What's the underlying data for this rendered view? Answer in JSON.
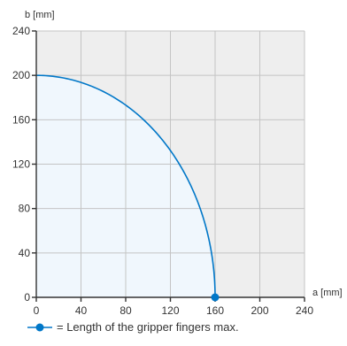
{
  "chart_data": {
    "type": "line",
    "xlabel": "a [mm]",
    "ylabel": "b [mm]",
    "xlim": [
      0,
      240
    ],
    "ylim": [
      0,
      240
    ],
    "x_ticks": [
      0,
      40,
      80,
      120,
      160,
      200,
      240
    ],
    "y_ticks": [
      0,
      40,
      80,
      120,
      160,
      200,
      240
    ],
    "grid": true,
    "series": [
      {
        "curve": "quarter-ellipse",
        "a_max": 160,
        "b_max": 200,
        "marker_point": {
          "x": 160,
          "y": 0
        }
      }
    ],
    "legend": {
      "text": "= Length of the gripper fingers max."
    }
  },
  "colors": {
    "line": "#0077c8",
    "fill": "#f0f7fd",
    "plot_background": "#eeeeee",
    "grid": "#c4c4c4",
    "axis": "#333333"
  }
}
